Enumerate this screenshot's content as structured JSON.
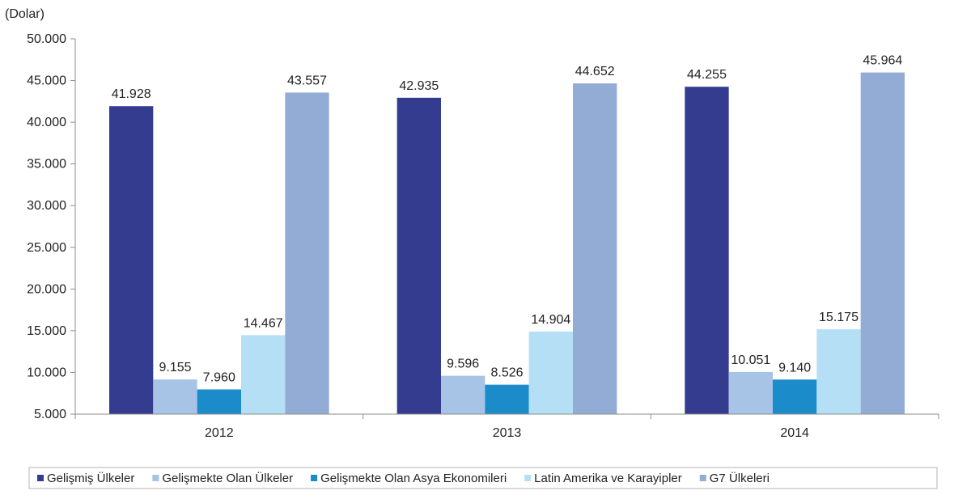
{
  "chart_data": {
    "type": "bar",
    "unit_label": "(Dolar)",
    "title": "",
    "xlabel": "",
    "ylabel": "",
    "categories": [
      "2012",
      "2013",
      "2014"
    ],
    "ylim": [
      5000,
      50000
    ],
    "y_ticks": [
      5000,
      10000,
      15000,
      20000,
      25000,
      30000,
      35000,
      40000,
      45000,
      50000
    ],
    "y_tick_labels": [
      "5.000",
      "10.000",
      "15.000",
      "20.000",
      "25.000",
      "30.000",
      "35.000",
      "40.000",
      "45.000",
      "50.000"
    ],
    "grid": false,
    "legend_position": "bottom",
    "series": [
      {
        "name": "Gelişmiş Ülkeler",
        "color": "#343c8f",
        "values": [
          41928,
          42935,
          44255
        ],
        "labels": [
          "41.928",
          "42.935",
          "44.255"
        ]
      },
      {
        "name": "Gelişmekte Olan Ülkeler",
        "color": "#a7c3e6",
        "values": [
          9155,
          9596,
          10051
        ],
        "labels": [
          "9.155",
          "9.596",
          "10.051"
        ]
      },
      {
        "name": "Gelişmekte Olan Asya Ekonomileri",
        "color": "#1b8bc9",
        "values": [
          7960,
          8526,
          9140
        ],
        "labels": [
          "7.960",
          "8.526",
          "9.140"
        ]
      },
      {
        "name": "Latin Amerika ve Karayipler",
        "color": "#b5dff5",
        "values": [
          14467,
          14904,
          15175
        ],
        "labels": [
          "14.467",
          "14.904",
          "15.175"
        ]
      },
      {
        "name": "G7 Ülkeleri",
        "color": "#93acd6",
        "values": [
          43557,
          44652,
          45964
        ],
        "labels": [
          "43.557",
          "44.652",
          "45.964"
        ]
      }
    ]
  }
}
